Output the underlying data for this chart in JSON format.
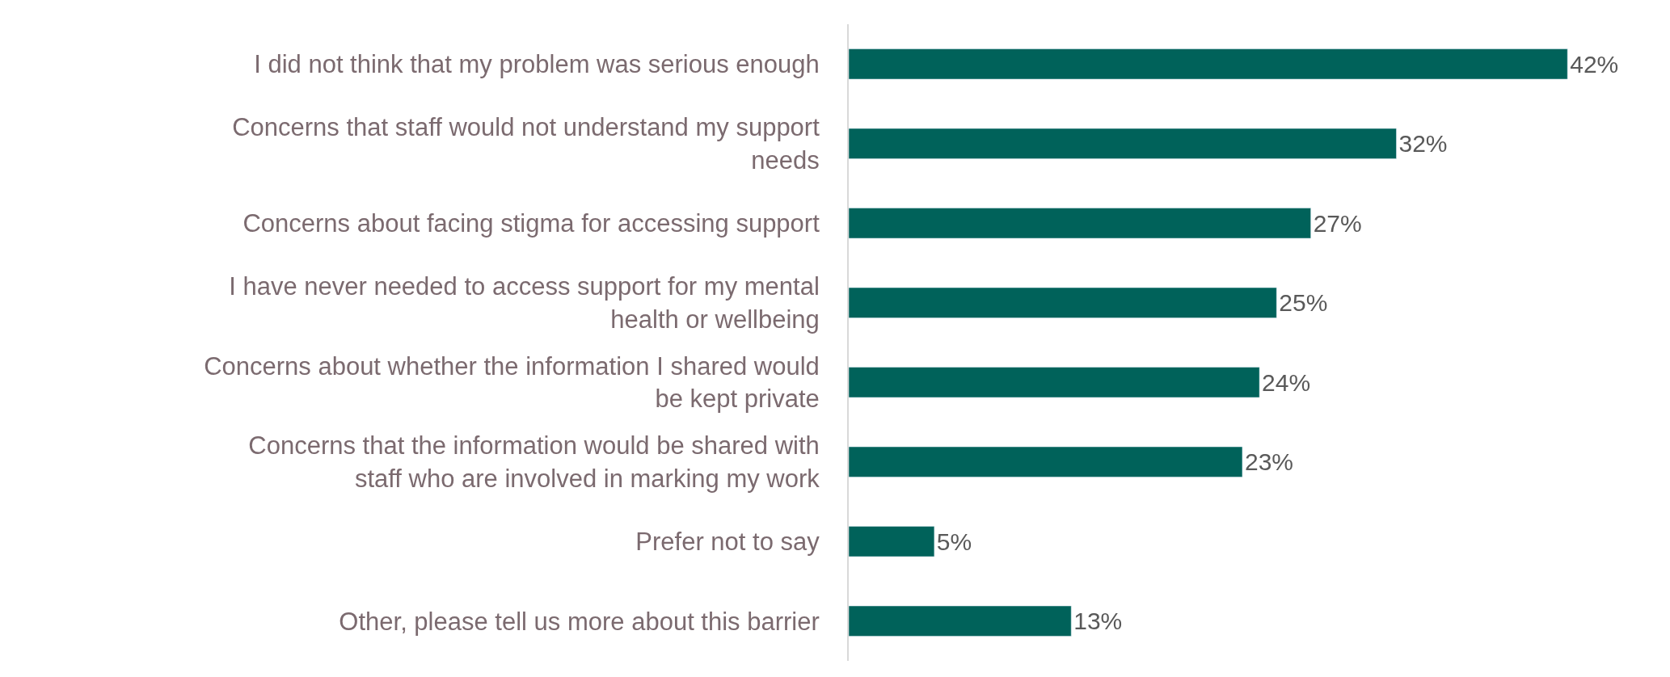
{
  "chart_data": {
    "type": "bar",
    "orientation": "horizontal",
    "categories": [
      "I did not think that my problem was serious enough",
      "Concerns that staff would not understand my support needs",
      "Concerns about facing stigma for accessing support",
      "I have never needed to access support for my mental health or wellbeing",
      "Concerns about whether the information I shared would be kept private",
      "Concerns that the information would be shared with staff who are involved in marking my work",
      "Prefer not to say",
      "Other, please tell us more about this barrier"
    ],
    "values": [
      42,
      32,
      27,
      25,
      24,
      23,
      5,
      13
    ],
    "value_labels": [
      "42%",
      "32%",
      "27%",
      "25%",
      "24%",
      "23%",
      "5%",
      "13%"
    ],
    "color": "#00625a"
  }
}
